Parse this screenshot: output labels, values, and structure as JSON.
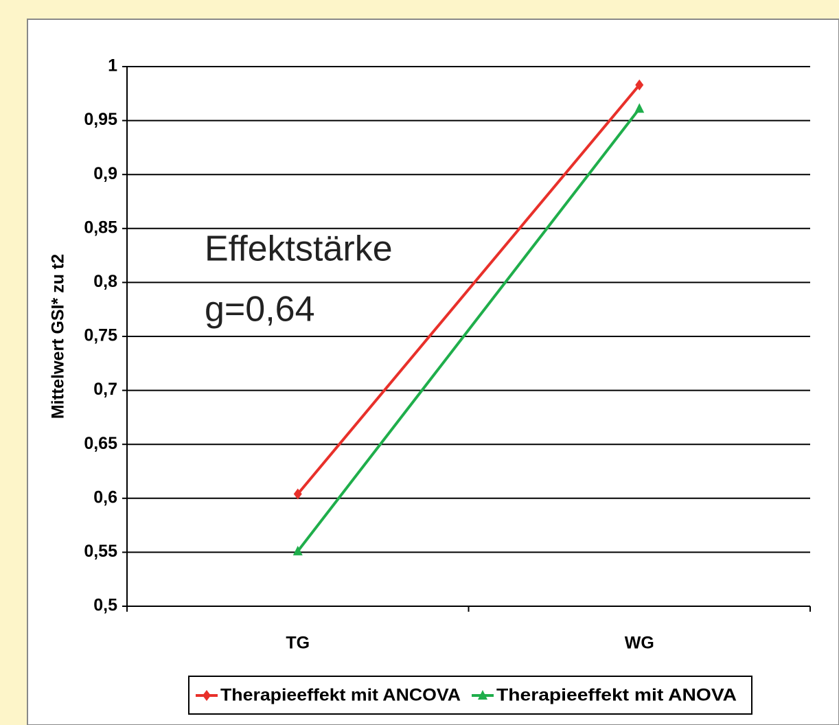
{
  "chart_data": {
    "type": "line",
    "y_label": "Mittelwert GSI* zu t2",
    "annotation": [
      "Effektstärke",
      "g=0,64"
    ],
    "categories": [
      "TG",
      "WG"
    ],
    "series": [
      {
        "name": "Therapieeffekt mit ANCOVA",
        "color": "#e8302a",
        "marker": "diamond",
        "values": [
          0.604,
          0.983
        ]
      },
      {
        "name": "Therapieeffekt mit ANOVA",
        "color": "#1fae4b",
        "marker": "triangle",
        "values": [
          0.551,
          0.961
        ]
      }
    ],
    "ylim": [
      0.5,
      1
    ],
    "yticks": [
      {
        "value": 0.5,
        "label": "0,5"
      },
      {
        "value": 0.55,
        "label": "0,55"
      },
      {
        "value": 0.6,
        "label": "0,6"
      },
      {
        "value": 0.65,
        "label": "0,65"
      },
      {
        "value": 0.7,
        "label": "0,7"
      },
      {
        "value": 0.75,
        "label": "0,75"
      },
      {
        "value": 0.8,
        "label": "0,8"
      },
      {
        "value": 0.85,
        "label": "0,85"
      },
      {
        "value": 0.9,
        "label": "0,9"
      },
      {
        "value": 0.95,
        "label": "0,95"
      },
      1
    ],
    "grid": true,
    "legend": "bottom"
  }
}
